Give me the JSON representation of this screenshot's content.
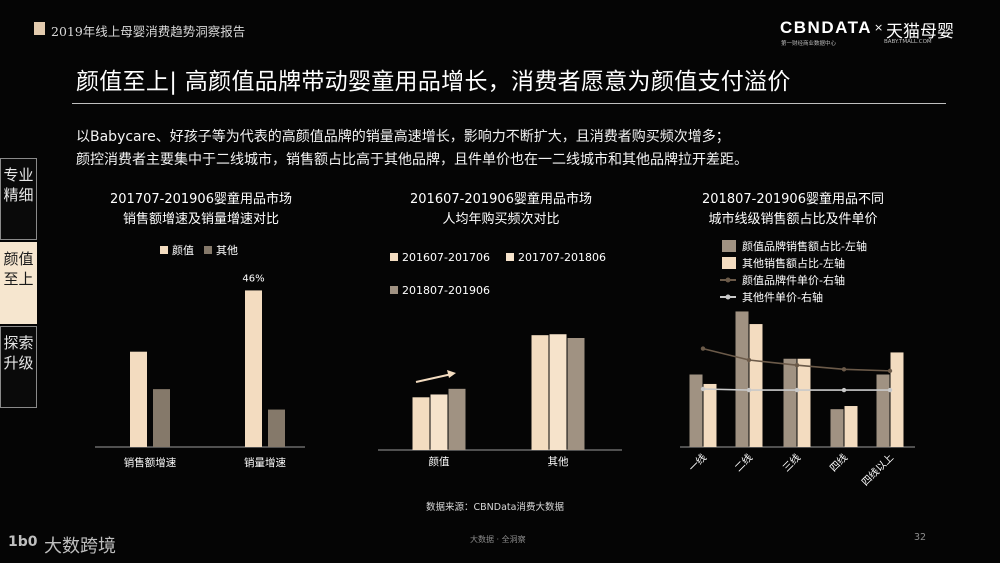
{
  "header": {
    "report_title": "2019年线上母婴消费趋势洞察报告",
    "brand_cbn": "CBNDATA",
    "brand_cbn_sub": "第一财经商业数据中心",
    "brand_x": "×",
    "brand_tmall": "天猫母婴",
    "brand_tmall_sub": "BABY.TMALL.COM"
  },
  "main_title": "颜值至上| 高颜值品牌带动婴童用品增长，消费者愿意为颜值支付溢价",
  "description": {
    "line1": "以Babycare、好孩子等为代表的高颜值品牌的销量高速增长，影响力不断扩大，且消费者购买频次增多；",
    "line2": "颜控消费者主要集中于二线城市，销售额占比高于其他品牌，且件单价也在一二线城市和其他品牌拉开差距。"
  },
  "side_nav": [
    {
      "label1": "专业",
      "label2": "精细"
    },
    {
      "label1": "颜值",
      "label2": "至上"
    },
    {
      "label1": "探索",
      "label2": "升级"
    }
  ],
  "colors": {
    "beige": "#f3dcc0",
    "taupe": "#85796a",
    "tan": "#a09282",
    "line_dark": "#6b5a49",
    "line_light": "#c9c9c9",
    "axis": "#9a9a9a"
  },
  "chart_data": [
    {
      "type": "bar",
      "title_line1": "201707-201906婴童用品市场",
      "title_line2": "销售额增速及销量增速对比",
      "categories": [
        "销售额增速",
        "销量增速"
      ],
      "series": [
        {
          "name": "颜值",
          "values": [
            28,
            46
          ]
        },
        {
          "name": "其他",
          "values": [
            17,
            11
          ]
        }
      ],
      "data_labels": [
        "",
        "46%"
      ],
      "ylim": [
        0,
        52
      ],
      "legend": "top"
    },
    {
      "type": "bar",
      "title_line1": "201607-201906婴童用品市场",
      "title_line2": "人均年购买频次对比",
      "categories": [
        "颜值",
        "其他"
      ],
      "series": [
        {
          "name": "201607-201706",
          "values": [
            2.8,
            6.1
          ]
        },
        {
          "name": "201707-201806",
          "values": [
            2.95,
            6.15
          ]
        },
        {
          "name": "201807-201906",
          "values": [
            3.25,
            5.95
          ]
        }
      ],
      "ylim": [
        0,
        6.8
      ],
      "legend": "top"
    },
    {
      "type": "bar",
      "title_line1": "201807-201906婴童用品不同",
      "title_line2": "城市线级销售额占比及件单价",
      "categories": [
        "一线",
        "二线",
        "三线",
        "四线",
        "四线以上"
      ],
      "series": [
        {
          "name": "颜值品牌销售额占比-左轴",
          "values": [
            23,
            43,
            28,
            12,
            23
          ]
        },
        {
          "name": "其他销售额占比-左轴",
          "values": [
            20,
            39,
            28,
            13,
            30
          ]
        },
        {
          "name": "颜值品牌件单价-右轴",
          "values": [
            190,
            168,
            158,
            150,
            147
          ]
        },
        {
          "name": "其他件单价-右轴",
          "values": [
            112,
            110,
            110,
            110,
            110
          ]
        }
      ],
      "ylim": [
        0,
        46
      ],
      "y2lim": [
        0,
        280
      ],
      "legend": "top"
    }
  ],
  "footer": {
    "source": "数据来源：CBNData消费大数据",
    "center_text": "大数据 · 全洞察",
    "page_number": "32",
    "logo_mark": "1b0",
    "logo_text": "大数跨境"
  }
}
